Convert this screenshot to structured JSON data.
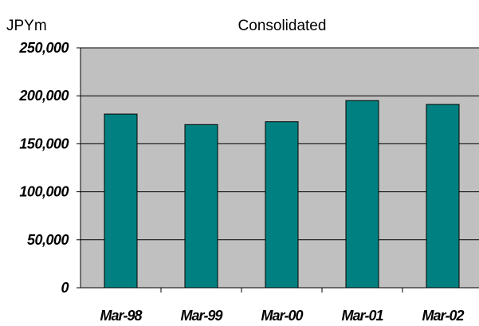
{
  "chart_data": {
    "type": "bar",
    "title": "Consolidated",
    "unit_label": "JPYm",
    "xlabel": "",
    "ylabel": "",
    "categories": [
      "Mar-98",
      "Mar-99",
      "Mar-00",
      "Mar-01",
      "Mar-02"
    ],
    "values": [
      181000,
      170000,
      173000,
      195000,
      191000
    ],
    "ylim": [
      0,
      250000
    ],
    "yticks": [
      0,
      50000,
      100000,
      150000,
      200000,
      250000
    ],
    "ytick_labels": [
      "0",
      "50,000",
      "100,000",
      "150,000",
      "200,000",
      "250,000"
    ],
    "grid": true,
    "legend": "none",
    "colors": {
      "bar": "#008080",
      "plot_background": "#c0c0c0",
      "gridline": "#000000"
    }
  }
}
